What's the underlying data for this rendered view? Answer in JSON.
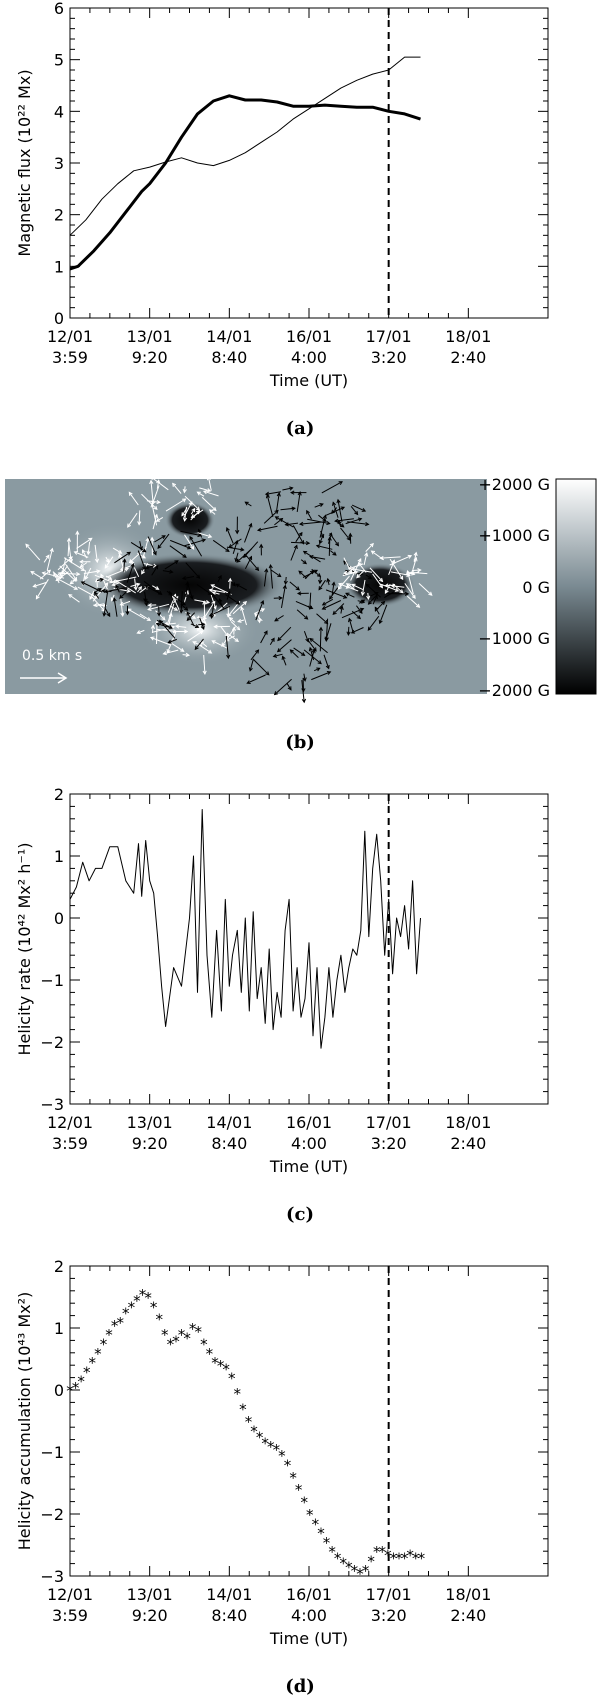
{
  "chart_data": [
    {
      "type": "line",
      "id": "a",
      "panel_label": "(a)",
      "xlabel": "Time (UT)",
      "ylabel": "Magnetic flux (10²² Mx)",
      "ylim": [
        0,
        6
      ],
      "xlim": [
        0,
        6
      ],
      "yticks": [
        0,
        1,
        2,
        3,
        4,
        5,
        6
      ],
      "xticks": [
        {
          "value": 0,
          "line1": "12/01",
          "line2": "3:59"
        },
        {
          "value": 1,
          "line1": "13/01",
          "line2": "9:20"
        },
        {
          "value": 2,
          "line1": "14/01",
          "line2": "8:40"
        },
        {
          "value": 3,
          "line1": "16/01",
          "line2": "4:00"
        },
        {
          "value": 4,
          "line1": "17/01",
          "line2": "3:20"
        },
        {
          "value": 5,
          "line1": "18/01",
          "line2": "2:40"
        }
      ],
      "event_line_x": 4.0,
      "series": [
        {
          "name": "thin",
          "stroke_width": 1,
          "x": [
            0,
            0.2,
            0.4,
            0.6,
            0.8,
            1.0,
            1.2,
            1.4,
            1.6,
            1.8,
            2.0,
            2.2,
            2.4,
            2.6,
            2.8,
            3.0,
            3.2,
            3.4,
            3.6,
            3.8,
            4.0,
            4.2,
            4.4
          ],
          "values": [
            1.6,
            1.9,
            2.3,
            2.6,
            2.85,
            2.92,
            3.02,
            3.1,
            3.0,
            2.95,
            3.05,
            3.2,
            3.4,
            3.6,
            3.85,
            4.05,
            4.25,
            4.45,
            4.6,
            4.72,
            4.8,
            5.05,
            5.05
          ]
        },
        {
          "name": "thick",
          "stroke_width": 3,
          "x": [
            0,
            0.1,
            0.3,
            0.5,
            0.7,
            0.9,
            1.0,
            1.2,
            1.4,
            1.6,
            1.8,
            2.0,
            2.2,
            2.4,
            2.6,
            2.8,
            3.0,
            3.2,
            3.4,
            3.6,
            3.8,
            4.0,
            4.2,
            4.4
          ],
          "values": [
            0.95,
            1.0,
            1.3,
            1.65,
            2.05,
            2.45,
            2.6,
            3.0,
            3.5,
            3.95,
            4.2,
            4.3,
            4.22,
            4.22,
            4.18,
            4.1,
            4.1,
            4.12,
            4.1,
            4.08,
            4.08,
            4.0,
            3.95,
            3.85
          ]
        }
      ]
    },
    {
      "type": "image",
      "id": "b",
      "panel_label": "(b)",
      "description_label": "0.5 km s",
      "colorbar_ticks": [
        "+2000 G",
        "+1000 G",
        "0 G",
        "−1000 G",
        "−2000 G"
      ]
    },
    {
      "type": "line",
      "id": "c",
      "panel_label": "(c)",
      "xlabel": "Time (UT)",
      "ylabel": "Helicity rate (10⁴² Mx² h⁻¹)",
      "ylim": [
        -3,
        2
      ],
      "xlim": [
        0,
        6
      ],
      "yticks": [
        -3,
        -2,
        -1,
        0,
        1,
        2
      ],
      "xticks": [
        {
          "value": 0,
          "line1": "12/01",
          "line2": "3:59"
        },
        {
          "value": 1,
          "line1": "13/01",
          "line2": "9:20"
        },
        {
          "value": 2,
          "line1": "14/01",
          "line2": "8:40"
        },
        {
          "value": 3,
          "line1": "16/01",
          "line2": "4:00"
        },
        {
          "value": 4,
          "line1": "17/01",
          "line2": "3:20"
        },
        {
          "value": 5,
          "line1": "18/01",
          "line2": "2:40"
        }
      ],
      "event_line_x": 4.0,
      "series": [
        {
          "name": "helicity_rate",
          "stroke_width": 1,
          "x": [
            0,
            0.08,
            0.16,
            0.24,
            0.32,
            0.4,
            0.5,
            0.6,
            0.7,
            0.8,
            0.86,
            0.9,
            0.95,
            1.0,
            1.05,
            1.1,
            1.15,
            1.2,
            1.3,
            1.4,
            1.5,
            1.55,
            1.6,
            1.66,
            1.72,
            1.78,
            1.84,
            1.9,
            1.95,
            2.0,
            2.04,
            2.1,
            2.15,
            2.2,
            2.25,
            2.3,
            2.35,
            2.4,
            2.45,
            2.5,
            2.55,
            2.6,
            2.65,
            2.7,
            2.75,
            2.8,
            2.85,
            2.9,
            2.95,
            3.0,
            3.05,
            3.1,
            3.15,
            3.2,
            3.25,
            3.3,
            3.35,
            3.4,
            3.45,
            3.5,
            3.55,
            3.6,
            3.65,
            3.7,
            3.75,
            3.8,
            3.85,
            3.9,
            3.95,
            4.0,
            4.05,
            4.1,
            4.15,
            4.2,
            4.25,
            4.3,
            4.35,
            4.4
          ],
          "values": [
            0.3,
            0.5,
            0.9,
            0.6,
            0.8,
            0.8,
            1.15,
            1.15,
            0.6,
            0.4,
            1.2,
            0.35,
            1.25,
            0.6,
            0.4,
            -0.3,
            -1.1,
            -1.75,
            -0.8,
            -1.1,
            0.0,
            1.0,
            -1.2,
            1.75,
            -0.6,
            -1.6,
            -0.2,
            -1.5,
            0.3,
            -1.1,
            -0.6,
            -0.2,
            -1.2,
            0.0,
            -1.5,
            0.1,
            -1.3,
            -0.8,
            -1.7,
            -0.5,
            -1.8,
            -1.2,
            -1.6,
            -0.2,
            0.3,
            -1.5,
            -0.8,
            -1.6,
            -1.3,
            -0.4,
            -1.9,
            -0.8,
            -2.1,
            -1.6,
            -0.8,
            -1.6,
            -1.0,
            -0.6,
            -1.2,
            -0.8,
            -0.5,
            -0.6,
            -0.2,
            1.4,
            -0.3,
            0.8,
            1.35,
            0.6,
            -0.6,
            0.3,
            -0.9,
            0.0,
            -0.3,
            0.2,
            -0.5,
            0.6,
            -0.9,
            0.0
          ]
        }
      ]
    },
    {
      "type": "scatter",
      "id": "d",
      "panel_label": "(d)",
      "xlabel": "Time (UT)",
      "ylabel": "Helicity accumulation (10⁴³ Mx²)",
      "ylim": [
        -3,
        2
      ],
      "xlim": [
        0,
        6
      ],
      "yticks": [
        -3,
        -2,
        -1,
        0,
        1,
        2
      ],
      "xticks": [
        {
          "value": 0,
          "line1": "12/01",
          "line2": "3:59"
        },
        {
          "value": 1,
          "line1": "13/01",
          "line2": "9:20"
        },
        {
          "value": 2,
          "line1": "14/01",
          "line2": "8:40"
        },
        {
          "value": 3,
          "line1": "16/01",
          "line2": "4:00"
        },
        {
          "value": 4,
          "line1": "17/01",
          "line2": "3:20"
        },
        {
          "value": 5,
          "line1": "18/01",
          "line2": "2:40"
        }
      ],
      "event_line_x": 4.0,
      "series": [
        {
          "name": "helicity_accumulation",
          "marker": "*",
          "x": [
            0.0,
            0.07,
            0.14,
            0.21,
            0.28,
            0.35,
            0.42,
            0.49,
            0.56,
            0.63,
            0.7,
            0.77,
            0.84,
            0.91,
            0.98,
            1.05,
            1.12,
            1.19,
            1.26,
            1.33,
            1.4,
            1.47,
            1.54,
            1.61,
            1.68,
            1.75,
            1.82,
            1.89,
            1.96,
            2.03,
            2.1,
            2.17,
            2.24,
            2.31,
            2.38,
            2.45,
            2.52,
            2.59,
            2.66,
            2.73,
            2.8,
            2.87,
            2.94,
            3.01,
            3.08,
            3.15,
            3.22,
            3.29,
            3.36,
            3.43,
            3.5,
            3.57,
            3.64,
            3.71,
            3.78,
            3.85,
            3.92,
            3.99,
            4.06,
            4.13,
            4.2,
            4.27,
            4.34,
            4.41
          ],
          "values": [
            0.0,
            0.05,
            0.15,
            0.3,
            0.45,
            0.6,
            0.75,
            0.9,
            1.05,
            1.1,
            1.25,
            1.35,
            1.45,
            1.55,
            1.5,
            1.35,
            1.15,
            0.9,
            0.75,
            0.8,
            0.9,
            0.85,
            1.0,
            0.95,
            0.75,
            0.6,
            0.45,
            0.4,
            0.35,
            0.2,
            -0.05,
            -0.3,
            -0.5,
            -0.65,
            -0.75,
            -0.85,
            -0.9,
            -0.95,
            -1.05,
            -1.2,
            -1.4,
            -1.6,
            -1.8,
            -2.0,
            -2.15,
            -2.3,
            -2.45,
            -2.6,
            -2.7,
            -2.78,
            -2.85,
            -2.9,
            -2.95,
            -2.9,
            -2.75,
            -2.6,
            -2.6,
            -2.65,
            -2.7,
            -2.7,
            -2.7,
            -2.65,
            -2.7,
            -2.7
          ]
        }
      ]
    }
  ]
}
